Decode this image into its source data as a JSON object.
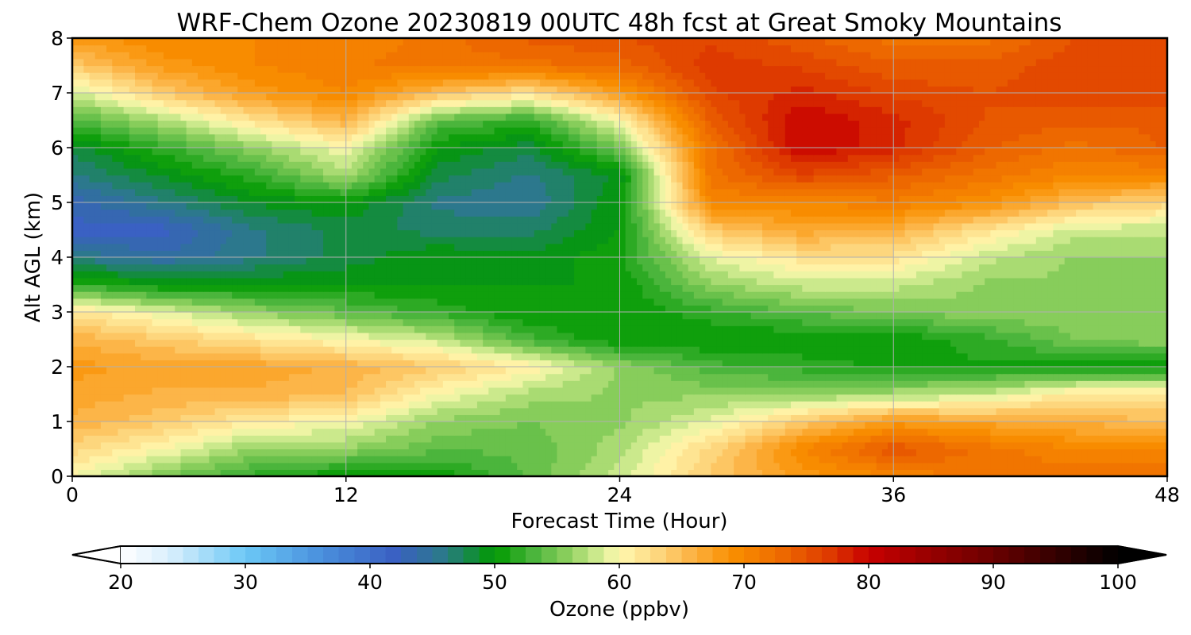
{
  "chart_data": {
    "type": "heatmap",
    "title": "WRF-Chem Ozone  20230819 00UTC 48h fcst at Great Smoky Mountains",
    "xlabel": "Forecast Time (Hour)",
    "ylabel": "Alt AGL (km)",
    "xlim": [
      0,
      48
    ],
    "ylim": [
      0,
      8
    ],
    "x_ticks": [
      "0",
      "12",
      "24",
      "36",
      "48"
    ],
    "y_ticks": [
      "0",
      "1",
      "2",
      "3",
      "4",
      "5",
      "6",
      "7",
      "8"
    ],
    "grid": true,
    "colorbar": {
      "label": "Ozone  (ppbv)",
      "range": [
        20,
        100
      ],
      "extend": "both",
      "ticks": [
        "20",
        "30",
        "40",
        "50",
        "60",
        "70",
        "80",
        "90",
        "100"
      ],
      "color_stops": [
        {
          "v": 20,
          "c": "#ffffff"
        },
        {
          "v": 24,
          "c": "#d8eefc"
        },
        {
          "v": 30,
          "c": "#6cc8f6"
        },
        {
          "v": 36,
          "c": "#4a90dd"
        },
        {
          "v": 42,
          "c": "#3a60c2"
        },
        {
          "v": 46,
          "c": "#2a7a88"
        },
        {
          "v": 50,
          "c": "#009a00"
        },
        {
          "v": 53,
          "c": "#48b43a"
        },
        {
          "v": 56,
          "c": "#90d060"
        },
        {
          "v": 58,
          "c": "#c8e88a"
        },
        {
          "v": 60,
          "c": "#fff9b0"
        },
        {
          "v": 63,
          "c": "#fdd880"
        },
        {
          "v": 66,
          "c": "#fcb040"
        },
        {
          "v": 69,
          "c": "#f99000"
        },
        {
          "v": 73,
          "c": "#ee6a00"
        },
        {
          "v": 77,
          "c": "#dd3800"
        },
        {
          "v": 80,
          "c": "#c80000"
        },
        {
          "v": 85,
          "c": "#960000"
        },
        {
          "v": 90,
          "c": "#6a0000"
        },
        {
          "v": 95,
          "c": "#340000"
        },
        {
          "v": 100,
          "c": "#000000"
        }
      ]
    },
    "grid_x": [
      0,
      4,
      8,
      12,
      16,
      20,
      24,
      28,
      32,
      36,
      40,
      44,
      48
    ],
    "grid_y": [
      0,
      0.5,
      1,
      1.5,
      2,
      2.5,
      3,
      3.5,
      4,
      4.5,
      5,
      5.5,
      6,
      6.5,
      7,
      7.5,
      8
    ],
    "z": [
      [
        60,
        55,
        52,
        50,
        50,
        54,
        58,
        64,
        68,
        70,
        72,
        72,
        72
      ],
      [
        63,
        60,
        56,
        56,
        54,
        54,
        57,
        63,
        70,
        75,
        72,
        70,
        70
      ],
      [
        66,
        64,
        61,
        60,
        56,
        55,
        56,
        59,
        64,
        68,
        67,
        66,
        65
      ],
      [
        67,
        66,
        66,
        65,
        60,
        57,
        56,
        56,
        56,
        57,
        58,
        62,
        62
      ],
      [
        68,
        67,
        67,
        66,
        64,
        61,
        56,
        53,
        52,
        51,
        51,
        50,
        50
      ],
      [
        66,
        64,
        62,
        60,
        58,
        53,
        50,
        50,
        50,
        50,
        52,
        55,
        56
      ],
      [
        62,
        59,
        56,
        54,
        52,
        50,
        50,
        52,
        54,
        55,
        56,
        56,
        56
      ],
      [
        52,
        50,
        50,
        50,
        50,
        50,
        50,
        56,
        58,
        58,
        56,
        56,
        56
      ],
      [
        46,
        44,
        46,
        48,
        50,
        49,
        51,
        59,
        62,
        62,
        58,
        56,
        56
      ],
      [
        42,
        42,
        46,
        48,
        47,
        47,
        50,
        64,
        67,
        66,
        62,
        58,
        58
      ],
      [
        43,
        46,
        49,
        50,
        46,
        45,
        50,
        70,
        70,
        71,
        69,
        65,
        63
      ],
      [
        46,
        49,
        52,
        57,
        48,
        46,
        49,
        72,
        76,
        74,
        72,
        70,
        70
      ],
      [
        48,
        52,
        56,
        60,
        50,
        48,
        55,
        72,
        80,
        78,
        74,
        72,
        74
      ],
      [
        53,
        57,
        62,
        66,
        54,
        52,
        60,
        74,
        80,
        78,
        75,
        74,
        74
      ],
      [
        58,
        64,
        68,
        70,
        65,
        62,
        68,
        76,
        78,
        76,
        75,
        76,
        76
      ],
      [
        64,
        68,
        70,
        71,
        72,
        72,
        73,
        77,
        76,
        74,
        74,
        76,
        76
      ],
      [
        68,
        70,
        70,
        70,
        72,
        74,
        75,
        76,
        74,
        72,
        72,
        75,
        76
      ]
    ]
  }
}
